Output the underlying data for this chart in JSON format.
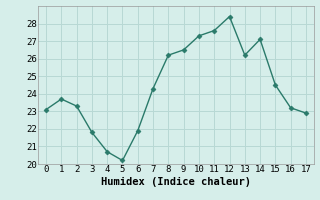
{
  "x": [
    0,
    1,
    2,
    3,
    4,
    5,
    6,
    7,
    8,
    9,
    10,
    11,
    12,
    13,
    14,
    15,
    16,
    17
  ],
  "y": [
    23.1,
    23.7,
    23.3,
    21.8,
    20.7,
    20.2,
    21.9,
    24.3,
    26.2,
    26.5,
    27.3,
    27.6,
    28.4,
    26.2,
    27.1,
    24.5,
    23.2,
    22.9
  ],
  "line_color": "#2a7a6a",
  "marker": "D",
  "marker_size": 2.5,
  "bg_color": "#d6eeea",
  "grid_color": "#b8d8d4",
  "xlabel": "Humidex (Indice chaleur)",
  "ylim": [
    20,
    29
  ],
  "xlim": [
    -0.5,
    17.5
  ],
  "yticks": [
    20,
    21,
    22,
    23,
    24,
    25,
    26,
    27,
    28
  ],
  "xticks": [
    0,
    1,
    2,
    3,
    4,
    5,
    6,
    7,
    8,
    9,
    10,
    11,
    12,
    13,
    14,
    15,
    16,
    17
  ],
  "tick_fontsize": 6.5,
  "xlabel_fontsize": 7.5
}
